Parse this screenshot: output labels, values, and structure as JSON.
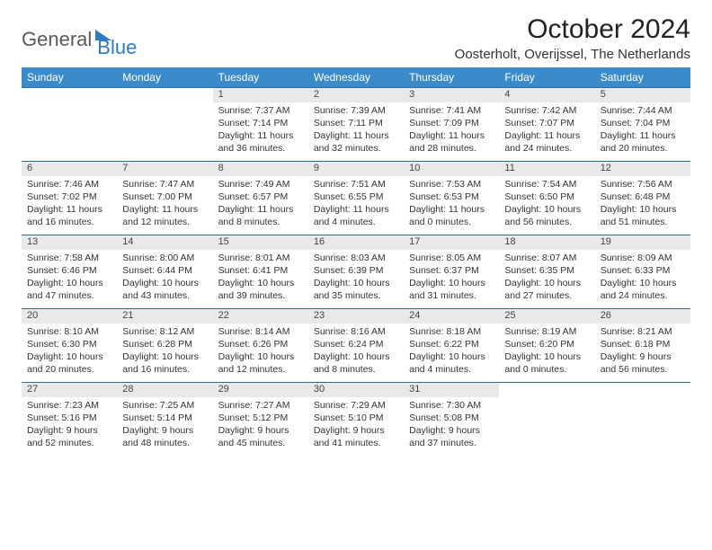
{
  "logo": {
    "part1": "General",
    "part2": "Blue"
  },
  "title": "October 2024",
  "location": "Oosterholt, Overijssel, The Netherlands",
  "colors": {
    "header_bg": "#3b8bca",
    "header_text": "#ffffff",
    "daynum_bg": "#e9e9e9",
    "rule": "#2e6da4",
    "logo_gray": "#5a5a5a",
    "logo_blue": "#2e7cc1"
  },
  "weekdays": [
    "Sunday",
    "Monday",
    "Tuesday",
    "Wednesday",
    "Thursday",
    "Friday",
    "Saturday"
  ],
  "weeks": [
    [
      null,
      null,
      {
        "n": "1",
        "sr": "Sunrise: 7:37 AM",
        "ss": "Sunset: 7:14 PM",
        "dl": "Daylight: 11 hours and 36 minutes."
      },
      {
        "n": "2",
        "sr": "Sunrise: 7:39 AM",
        "ss": "Sunset: 7:11 PM",
        "dl": "Daylight: 11 hours and 32 minutes."
      },
      {
        "n": "3",
        "sr": "Sunrise: 7:41 AM",
        "ss": "Sunset: 7:09 PM",
        "dl": "Daylight: 11 hours and 28 minutes."
      },
      {
        "n": "4",
        "sr": "Sunrise: 7:42 AM",
        "ss": "Sunset: 7:07 PM",
        "dl": "Daylight: 11 hours and 24 minutes."
      },
      {
        "n": "5",
        "sr": "Sunrise: 7:44 AM",
        "ss": "Sunset: 7:04 PM",
        "dl": "Daylight: 11 hours and 20 minutes."
      }
    ],
    [
      {
        "n": "6",
        "sr": "Sunrise: 7:46 AM",
        "ss": "Sunset: 7:02 PM",
        "dl": "Daylight: 11 hours and 16 minutes."
      },
      {
        "n": "7",
        "sr": "Sunrise: 7:47 AM",
        "ss": "Sunset: 7:00 PM",
        "dl": "Daylight: 11 hours and 12 minutes."
      },
      {
        "n": "8",
        "sr": "Sunrise: 7:49 AM",
        "ss": "Sunset: 6:57 PM",
        "dl": "Daylight: 11 hours and 8 minutes."
      },
      {
        "n": "9",
        "sr": "Sunrise: 7:51 AM",
        "ss": "Sunset: 6:55 PM",
        "dl": "Daylight: 11 hours and 4 minutes."
      },
      {
        "n": "10",
        "sr": "Sunrise: 7:53 AM",
        "ss": "Sunset: 6:53 PM",
        "dl": "Daylight: 11 hours and 0 minutes."
      },
      {
        "n": "11",
        "sr": "Sunrise: 7:54 AM",
        "ss": "Sunset: 6:50 PM",
        "dl": "Daylight: 10 hours and 56 minutes."
      },
      {
        "n": "12",
        "sr": "Sunrise: 7:56 AM",
        "ss": "Sunset: 6:48 PM",
        "dl": "Daylight: 10 hours and 51 minutes."
      }
    ],
    [
      {
        "n": "13",
        "sr": "Sunrise: 7:58 AM",
        "ss": "Sunset: 6:46 PM",
        "dl": "Daylight: 10 hours and 47 minutes."
      },
      {
        "n": "14",
        "sr": "Sunrise: 8:00 AM",
        "ss": "Sunset: 6:44 PM",
        "dl": "Daylight: 10 hours and 43 minutes."
      },
      {
        "n": "15",
        "sr": "Sunrise: 8:01 AM",
        "ss": "Sunset: 6:41 PM",
        "dl": "Daylight: 10 hours and 39 minutes."
      },
      {
        "n": "16",
        "sr": "Sunrise: 8:03 AM",
        "ss": "Sunset: 6:39 PM",
        "dl": "Daylight: 10 hours and 35 minutes."
      },
      {
        "n": "17",
        "sr": "Sunrise: 8:05 AM",
        "ss": "Sunset: 6:37 PM",
        "dl": "Daylight: 10 hours and 31 minutes."
      },
      {
        "n": "18",
        "sr": "Sunrise: 8:07 AM",
        "ss": "Sunset: 6:35 PM",
        "dl": "Daylight: 10 hours and 27 minutes."
      },
      {
        "n": "19",
        "sr": "Sunrise: 8:09 AM",
        "ss": "Sunset: 6:33 PM",
        "dl": "Daylight: 10 hours and 24 minutes."
      }
    ],
    [
      {
        "n": "20",
        "sr": "Sunrise: 8:10 AM",
        "ss": "Sunset: 6:30 PM",
        "dl": "Daylight: 10 hours and 20 minutes."
      },
      {
        "n": "21",
        "sr": "Sunrise: 8:12 AM",
        "ss": "Sunset: 6:28 PM",
        "dl": "Daylight: 10 hours and 16 minutes."
      },
      {
        "n": "22",
        "sr": "Sunrise: 8:14 AM",
        "ss": "Sunset: 6:26 PM",
        "dl": "Daylight: 10 hours and 12 minutes."
      },
      {
        "n": "23",
        "sr": "Sunrise: 8:16 AM",
        "ss": "Sunset: 6:24 PM",
        "dl": "Daylight: 10 hours and 8 minutes."
      },
      {
        "n": "24",
        "sr": "Sunrise: 8:18 AM",
        "ss": "Sunset: 6:22 PM",
        "dl": "Daylight: 10 hours and 4 minutes."
      },
      {
        "n": "25",
        "sr": "Sunrise: 8:19 AM",
        "ss": "Sunset: 6:20 PM",
        "dl": "Daylight: 10 hours and 0 minutes."
      },
      {
        "n": "26",
        "sr": "Sunrise: 8:21 AM",
        "ss": "Sunset: 6:18 PM",
        "dl": "Daylight: 9 hours and 56 minutes."
      }
    ],
    [
      {
        "n": "27",
        "sr": "Sunrise: 7:23 AM",
        "ss": "Sunset: 5:16 PM",
        "dl": "Daylight: 9 hours and 52 minutes."
      },
      {
        "n": "28",
        "sr": "Sunrise: 7:25 AM",
        "ss": "Sunset: 5:14 PM",
        "dl": "Daylight: 9 hours and 48 minutes."
      },
      {
        "n": "29",
        "sr": "Sunrise: 7:27 AM",
        "ss": "Sunset: 5:12 PM",
        "dl": "Daylight: 9 hours and 45 minutes."
      },
      {
        "n": "30",
        "sr": "Sunrise: 7:29 AM",
        "ss": "Sunset: 5:10 PM",
        "dl": "Daylight: 9 hours and 41 minutes."
      },
      {
        "n": "31",
        "sr": "Sunrise: 7:30 AM",
        "ss": "Sunset: 5:08 PM",
        "dl": "Daylight: 9 hours and 37 minutes."
      },
      null,
      null
    ]
  ]
}
